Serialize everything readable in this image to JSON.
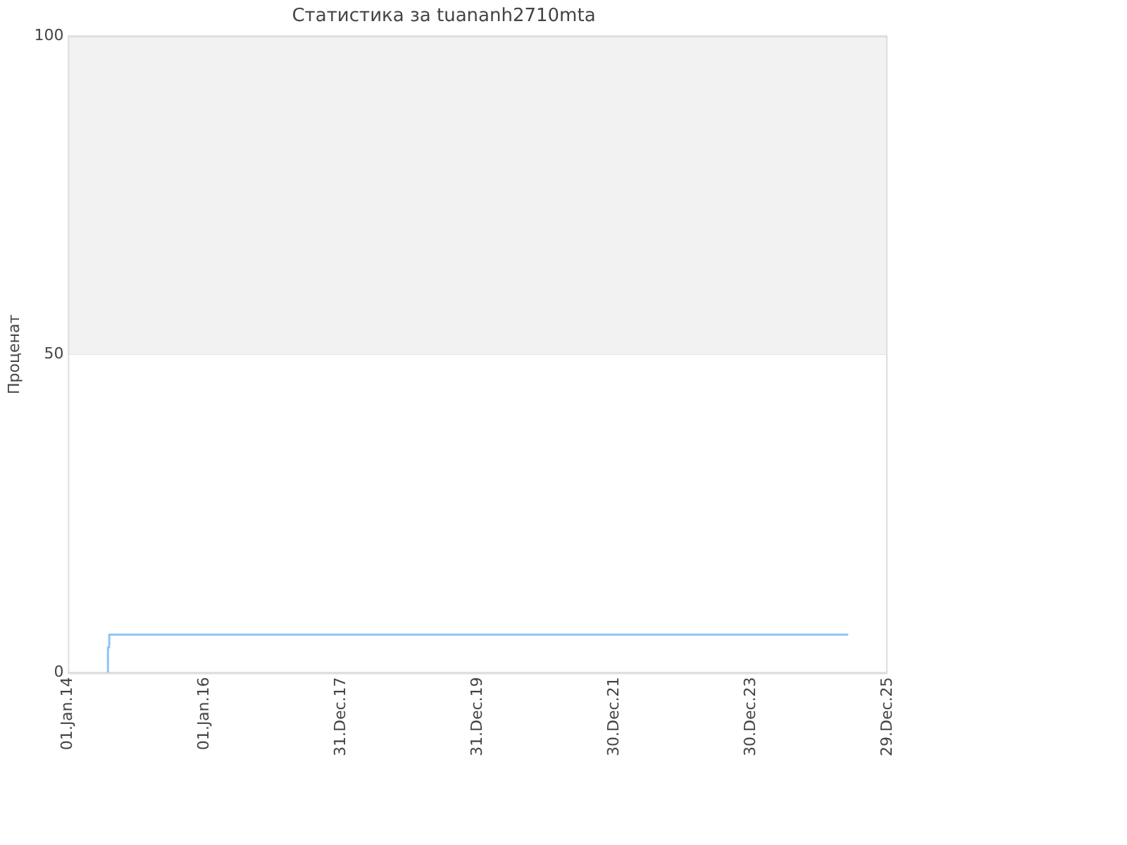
{
  "chart_data": {
    "type": "step",
    "title": "Статистика за tuananh2710mta",
    "ylabel": "Проценат",
    "series": [
      {
        "color": "#90c4f5",
        "x": [
          "2014-07-31",
          "2014-08-03",
          "2014-08-10",
          "2025-06-02"
        ],
        "values": [
          0,
          4,
          6,
          6
        ]
      }
    ],
    "xlim": [
      "2014-01-01",
      "2025-12-29"
    ],
    "xticks": [
      {
        "value": "2014-01-01",
        "label": "01.Jan.14"
      },
      {
        "value": "2016-01-01",
        "label": "01.Jan.16"
      },
      {
        "value": "2017-12-31",
        "label": "31.Dec.17"
      },
      {
        "value": "2019-12-31",
        "label": "31.Dec.19"
      },
      {
        "value": "2021-12-30",
        "label": "30.Dec.21"
      },
      {
        "value": "2023-12-30",
        "label": "30.Dec.23"
      },
      {
        "value": "2025-12-29",
        "label": "29.Dec.25"
      }
    ],
    "ylim": [
      0,
      100
    ],
    "yticks": [
      0,
      50,
      100
    ],
    "bands": [
      {
        "axis": "y",
        "from": 50,
        "to": 100,
        "color": "#f2f2f2"
      }
    ],
    "grid": "y",
    "legend": false,
    "marker": "none",
    "line_style": "solid"
  }
}
